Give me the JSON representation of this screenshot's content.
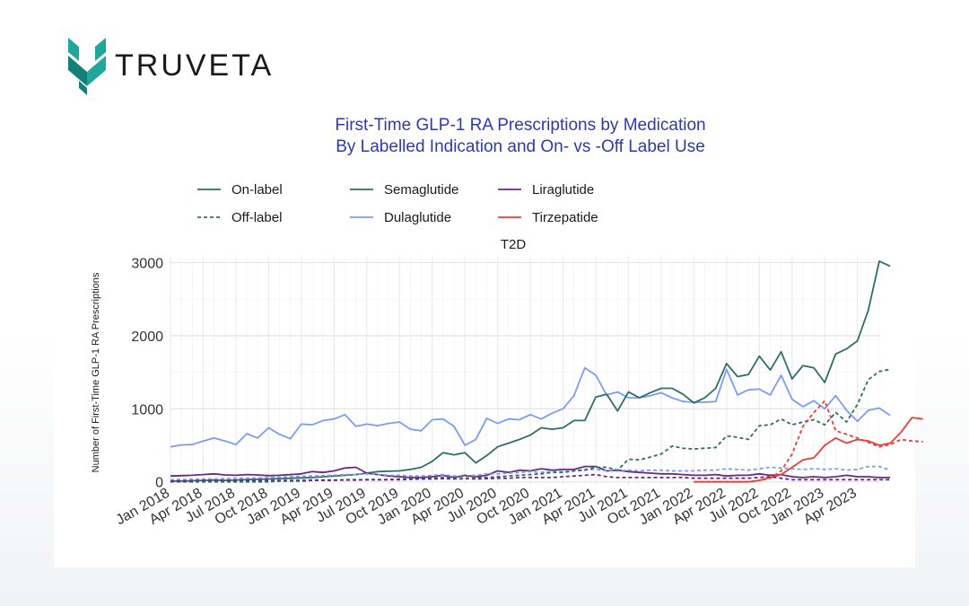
{
  "brand": {
    "name": "TRUVETA",
    "colors": {
      "teal": "#1fa79b",
      "dark_teal": "#15807a"
    }
  },
  "chart_data": {
    "type": "line",
    "title": "First-Time GLP-1 RA Prescriptions by Medication",
    "subtitle": "By Labelled Indication and On- vs -Off Label Use",
    "panel_label": "T2D",
    "ylabel": "Number of First-Time GLP-1 RA Prescriptions",
    "xlabel": "",
    "x_start": "2018-01",
    "x_end": "2023-06",
    "x_ticks": [
      "Jan 2018",
      "Apr 2018",
      "Jul 2018",
      "Oct 2018",
      "Jan 2019",
      "Apr 2019",
      "Jul 2019",
      "Oct 2019",
      "Jan 2020",
      "Apr 2020",
      "Jul 2020",
      "Oct 2020",
      "Jan 2021",
      "Apr 2021",
      "Jul 2021",
      "Oct 2021",
      "Jan 2022",
      "Apr 2022",
      "Jul 2022",
      "Oct 2022",
      "Jan 2023",
      "Apr 2023"
    ],
    "ylim": [
      -40,
      3080
    ],
    "y_ticks": [
      0,
      1000,
      2000,
      3000
    ],
    "grid": true,
    "legend_placement": "top",
    "legend_linetype": [
      {
        "label": "On-label",
        "dash": "solid"
      },
      {
        "label": "Off-label",
        "dash": "dashed"
      }
    ],
    "legend_medication": [
      {
        "label": "Semaglutide",
        "color": "#2f6e63"
      },
      {
        "label": "Liraglutide",
        "color": "#6b2a82"
      },
      {
        "label": "Dulaglutide",
        "color": "#7b9df0"
      },
      {
        "label": "Tirzepatide",
        "color": "#e8403a"
      }
    ],
    "series": [
      {
        "medication": "Dulaglutide",
        "use": "On-label",
        "color": "#7b9df0",
        "dash": "solid",
        "start": "2018-01",
        "values": [
          480,
          505,
          510,
          560,
          600,
          560,
          510,
          660,
          600,
          740,
          650,
          590,
          790,
          780,
          840,
          860,
          920,
          760,
          790,
          770,
          800,
          820,
          720,
          700,
          850,
          860,
          760,
          500,
          580,
          870,
          800,
          860,
          850,
          920,
          860,
          940,
          1000,
          1180,
          1560,
          1460,
          1190,
          1230,
          1150,
          1150,
          1180,
          1220,
          1150,
          1100,
          1090,
          1090,
          1100,
          1540,
          1190,
          1260,
          1270,
          1190,
          1460,
          1130,
          1030,
          1110,
          1000,
          1180,
          980,
          830,
          980,
          1010,
          910
        ]
      },
      {
        "medication": "Semaglutide",
        "use": "On-label",
        "color": "#2f6e63",
        "dash": "solid",
        "start": "2018-01",
        "values": [
          10,
          10,
          15,
          20,
          25,
          20,
          25,
          30,
          35,
          40,
          45,
          50,
          55,
          60,
          70,
          80,
          90,
          100,
          120,
          140,
          145,
          150,
          170,
          200,
          280,
          400,
          370,
          400,
          260,
          360,
          480,
          530,
          580,
          640,
          740,
          720,
          740,
          840,
          840,
          1160,
          1200,
          970,
          1230,
          1150,
          1220,
          1280,
          1280,
          1200,
          1080,
          1150,
          1280,
          1620,
          1440,
          1470,
          1720,
          1530,
          1780,
          1410,
          1590,
          1560,
          1360,
          1750,
          1820,
          1930,
          2350,
          3020,
          2950
        ]
      },
      {
        "medication": "Liraglutide",
        "use": "On-label",
        "color": "#6b2a82",
        "dash": "solid",
        "start": "2018-01",
        "values": [
          80,
          85,
          90,
          100,
          110,
          95,
          90,
          100,
          95,
          85,
          90,
          100,
          110,
          140,
          130,
          150,
          190,
          200,
          120,
          100,
          80,
          70,
          60,
          60,
          70,
          90,
          60,
          90,
          70,
          90,
          150,
          130,
          160,
          150,
          180,
          160,
          170,
          170,
          210,
          210,
          150,
          160,
          140,
          130,
          120,
          110,
          110,
          100,
          90,
          90,
          100,
          80,
          90,
          90,
          110,
          90,
          100,
          70,
          60,
          70,
          60,
          70,
          90,
          70,
          70,
          60,
          60
        ]
      },
      {
        "medication": "Tirzepatide",
        "use": "On-label",
        "color": "#e8403a",
        "dash": "solid",
        "start": "2022-01",
        "values": [
          0,
          0,
          0,
          0,
          0,
          0,
          20,
          60,
          100,
          200,
          300,
          330,
          500,
          600,
          530,
          580,
          560,
          500,
          530,
          680,
          880,
          860
        ]
      },
      {
        "medication": "Dulaglutide",
        "use": "Off-label",
        "color": "#7b9df0",
        "dash": "dashed",
        "start": "2018-01",
        "values": [
          30,
          30,
          35,
          40,
          40,
          45,
          50,
          50,
          55,
          60,
          65,
          70,
          75,
          80,
          85,
          90,
          100,
          100,
          110,
          100,
          90,
          90,
          80,
          80,
          90,
          100,
          80,
          80,
          90,
          110,
          110,
          120,
          130,
          140,
          130,
          140,
          140,
          150,
          170,
          170,
          150,
          150,
          160,
          150,
          160,
          160,
          150,
          150,
          150,
          160,
          160,
          180,
          170,
          160,
          180,
          200,
          190,
          180,
          170,
          180,
          170,
          180,
          160,
          170,
          210,
          210,
          160
        ]
      },
      {
        "medication": "Semaglutide",
        "use": "Off-label",
        "color": "#2f6e63",
        "dash": "dashed",
        "start": "2018-01",
        "values": [
          0,
          0,
          0,
          0,
          0,
          0,
          0,
          0,
          0,
          0,
          10,
          10,
          10,
          20,
          20,
          20,
          30,
          30,
          30,
          30,
          30,
          40,
          40,
          40,
          50,
          60,
          60,
          80,
          60,
          60,
          70,
          80,
          90,
          100,
          110,
          130,
          130,
          150,
          160,
          200,
          200,
          160,
          310,
          300,
          340,
          380,
          490,
          460,
          450,
          460,
          470,
          630,
          610,
          580,
          770,
          780,
          860,
          780,
          820,
          850,
          780,
          950,
          820,
          1060,
          1400,
          1510,
          1540
        ]
      },
      {
        "medication": "Liraglutide",
        "use": "Off-label",
        "color": "#6b2a82",
        "dash": "dashed",
        "start": "2018-01",
        "values": [
          10,
          15,
          15,
          20,
          20,
          20,
          20,
          20,
          20,
          20,
          20,
          20,
          20,
          25,
          25,
          25,
          25,
          25,
          30,
          30,
          30,
          30,
          35,
          40,
          40,
          45,
          40,
          45,
          40,
          45,
          50,
          50,
          60,
          60,
          60,
          60,
          70,
          80,
          90,
          100,
          70,
          60,
          60,
          60,
          60,
          60,
          60,
          60,
          50,
          50,
          50,
          50,
          50,
          50,
          60,
          70,
          50,
          30,
          30,
          30,
          30,
          30,
          30,
          30,
          30,
          30,
          30
        ]
      },
      {
        "medication": "Tirzepatide",
        "use": "Off-label",
        "color": "#e8403a",
        "dash": "dashed",
        "start": "2022-01",
        "values": [
          0,
          0,
          0,
          0,
          0,
          0,
          20,
          50,
          150,
          380,
          760,
          950,
          1110,
          700,
          650,
          600,
          540,
          480,
          510,
          580,
          560,
          550
        ]
      }
    ]
  }
}
